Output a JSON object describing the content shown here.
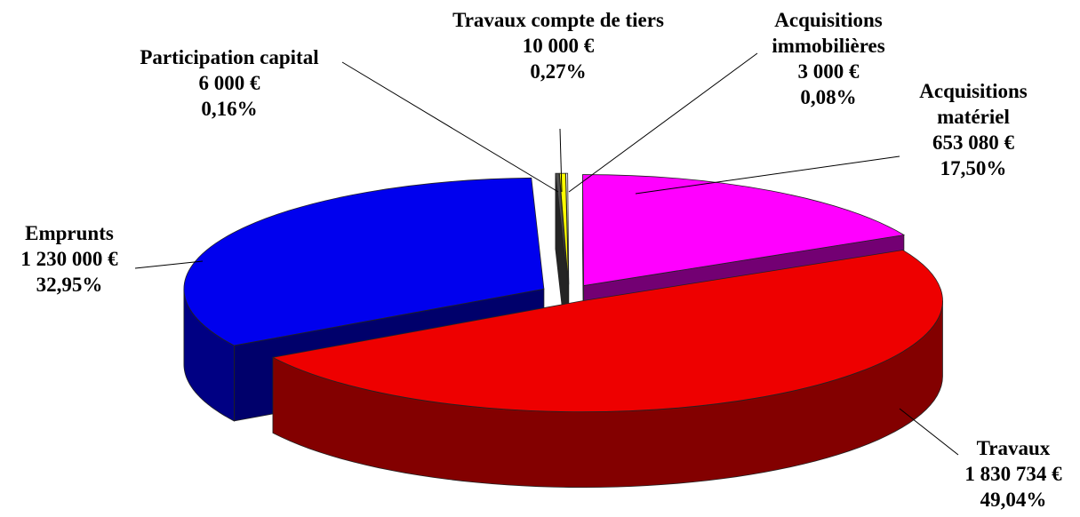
{
  "chart_data": {
    "type": "pie",
    "categories": [
      "Participation capital",
      "Travaux compte de tiers",
      "Acquisitions immobilières",
      "Acquisitions matériel",
      "Travaux",
      "Emprunts"
    ],
    "values": [
      6000,
      10000,
      3000,
      653080,
      1830734,
      1230000
    ],
    "value_labels": [
      "6 000 €",
      "10 000 €",
      "3 000 €",
      "653 080 €",
      "1 830 734 €",
      "1 230 000 €"
    ],
    "percentages": [
      0.16,
      0.27,
      0.08,
      17.5,
      49.04,
      32.95
    ],
    "percentage_labels": [
      "0,16%",
      "0,27%",
      "0,08%",
      "17,50%",
      "49,04%",
      "32,95%"
    ],
    "colors": [
      "#505050",
      "#ffff00",
      "#ffffff",
      "#ff00ff",
      "#ee0000",
      "#0000ee"
    ]
  }
}
